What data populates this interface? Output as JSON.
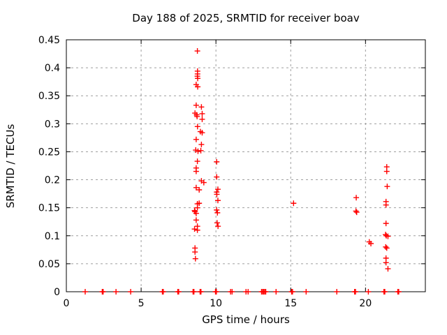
{
  "chart_data": {
    "type": "scatter",
    "title": "Day 188 of 2025, SRMTID for receiver boav",
    "xlabel": "GPS time / hours",
    "ylabel": "SRMTID / TECUs",
    "xlim": [
      0,
      24
    ],
    "ylim": [
      0,
      0.45
    ],
    "grid": true,
    "legend_position": "none",
    "marker_shape": "plus",
    "marker_color": "#ff0000",
    "xticks": [
      {
        "v": 0,
        "label": "0"
      },
      {
        "v": 5,
        "label": "5"
      },
      {
        "v": 10,
        "label": "10"
      },
      {
        "v": 15,
        "label": "15"
      },
      {
        "v": 20,
        "label": "20"
      }
    ],
    "yticks": [
      {
        "v": 0,
        "label": "0"
      },
      {
        "v": 0.05,
        "label": "0.05"
      },
      {
        "v": 0.1,
        "label": "0.1"
      },
      {
        "v": 0.15,
        "label": "0.15"
      },
      {
        "v": 0.2,
        "label": "0.2"
      },
      {
        "v": 0.25,
        "label": "0.25"
      },
      {
        "v": 0.3,
        "label": "0.3"
      },
      {
        "v": 0.35,
        "label": "0.35"
      },
      {
        "v": 0.4,
        "label": "0.4"
      },
      {
        "v": 0.45,
        "label": "0.45"
      }
    ],
    "series": [
      {
        "name": "SRMTID",
        "points": [
          [
            1.26,
            0
          ],
          [
            2.4,
            0
          ],
          [
            2.46,
            0
          ],
          [
            3.32,
            0
          ],
          [
            4.3,
            0
          ],
          [
            6.42,
            0
          ],
          [
            6.48,
            0
          ],
          [
            7.45,
            0
          ],
          [
            7.51,
            0
          ],
          [
            8.47,
            0
          ],
          [
            8.53,
            0
          ],
          [
            8.94,
            0
          ],
          [
            9.0,
            0
          ],
          [
            9.97,
            0
          ],
          [
            10.03,
            0
          ],
          [
            10.98,
            0
          ],
          [
            11.08,
            0
          ],
          [
            12.01,
            0
          ],
          [
            12.15,
            0
          ],
          [
            13.05,
            0
          ],
          [
            13.12,
            0
          ],
          [
            13.19,
            0
          ],
          [
            13.26,
            0
          ],
          [
            13.33,
            0
          ],
          [
            14.02,
            0
          ],
          [
            15.06,
            0
          ],
          [
            15.12,
            0
          ],
          [
            16.03,
            0
          ],
          [
            18.08,
            0
          ],
          [
            19.27,
            0
          ],
          [
            19.33,
            0
          ],
          [
            20.19,
            0
          ],
          [
            21.23,
            0
          ],
          [
            21.29,
            0
          ],
          [
            22.16,
            0
          ],
          [
            22.22,
            0
          ],
          [
            8.76,
            0.43
          ],
          [
            8.77,
            0.394
          ],
          [
            8.77,
            0.389
          ],
          [
            8.76,
            0.385
          ],
          [
            8.78,
            0.381
          ],
          [
            8.68,
            0.37
          ],
          [
            8.78,
            0.366
          ],
          [
            8.68,
            0.333
          ],
          [
            9.03,
            0.33
          ],
          [
            8.6,
            0.319
          ],
          [
            9.08,
            0.318
          ],
          [
            8.71,
            0.316
          ],
          [
            8.74,
            0.313
          ],
          [
            9.08,
            0.308
          ],
          [
            8.77,
            0.295
          ],
          [
            8.96,
            0.286
          ],
          [
            9.08,
            0.284
          ],
          [
            8.68,
            0.272
          ],
          [
            9.03,
            0.263
          ],
          [
            8.65,
            0.253
          ],
          [
            8.99,
            0.252
          ],
          [
            8.8,
            0.251
          ],
          [
            8.76,
            0.233
          ],
          [
            8.68,
            0.221
          ],
          [
            8.68,
            0.215
          ],
          [
            9.03,
            0.198
          ],
          [
            9.19,
            0.195
          ],
          [
            8.68,
            0.186
          ],
          [
            8.88,
            0.182
          ],
          [
            8.88,
            0.158
          ],
          [
            8.76,
            0.157
          ],
          [
            8.76,
            0.15
          ],
          [
            8.57,
            0.145
          ],
          [
            8.6,
            0.143
          ],
          [
            8.68,
            0.14
          ],
          [
            8.68,
            0.128
          ],
          [
            8.76,
            0.117
          ],
          [
            8.57,
            0.112
          ],
          [
            8.76,
            0.11
          ],
          [
            8.6,
            0.078
          ],
          [
            8.6,
            0.071
          ],
          [
            8.63,
            0.059
          ],
          [
            10.05,
            0.232
          ],
          [
            10.05,
            0.205
          ],
          [
            10.13,
            0.183
          ],
          [
            10.05,
            0.178
          ],
          [
            10.06,
            0.174
          ],
          [
            10.13,
            0.163
          ],
          [
            10.05,
            0.146
          ],
          [
            10.1,
            0.141
          ],
          [
            10.08,
            0.123
          ],
          [
            10.14,
            0.117
          ],
          [
            15.19,
            0.158
          ],
          [
            19.38,
            0.168
          ],
          [
            19.36,
            0.144
          ],
          [
            19.41,
            0.142
          ],
          [
            20.25,
            0.089
          ],
          [
            20.36,
            0.086
          ],
          [
            21.42,
            0.223
          ],
          [
            21.42,
            0.215
          ],
          [
            21.45,
            0.188
          ],
          [
            21.37,
            0.161
          ],
          [
            21.37,
            0.155
          ],
          [
            21.37,
            0.122
          ],
          [
            21.34,
            0.102
          ],
          [
            21.39,
            0.1
          ],
          [
            21.5,
            0.099
          ],
          [
            21.35,
            0.08
          ],
          [
            21.42,
            0.078
          ],
          [
            21.37,
            0.06
          ],
          [
            21.37,
            0.052
          ],
          [
            21.5,
            0.041
          ]
        ]
      }
    ]
  }
}
